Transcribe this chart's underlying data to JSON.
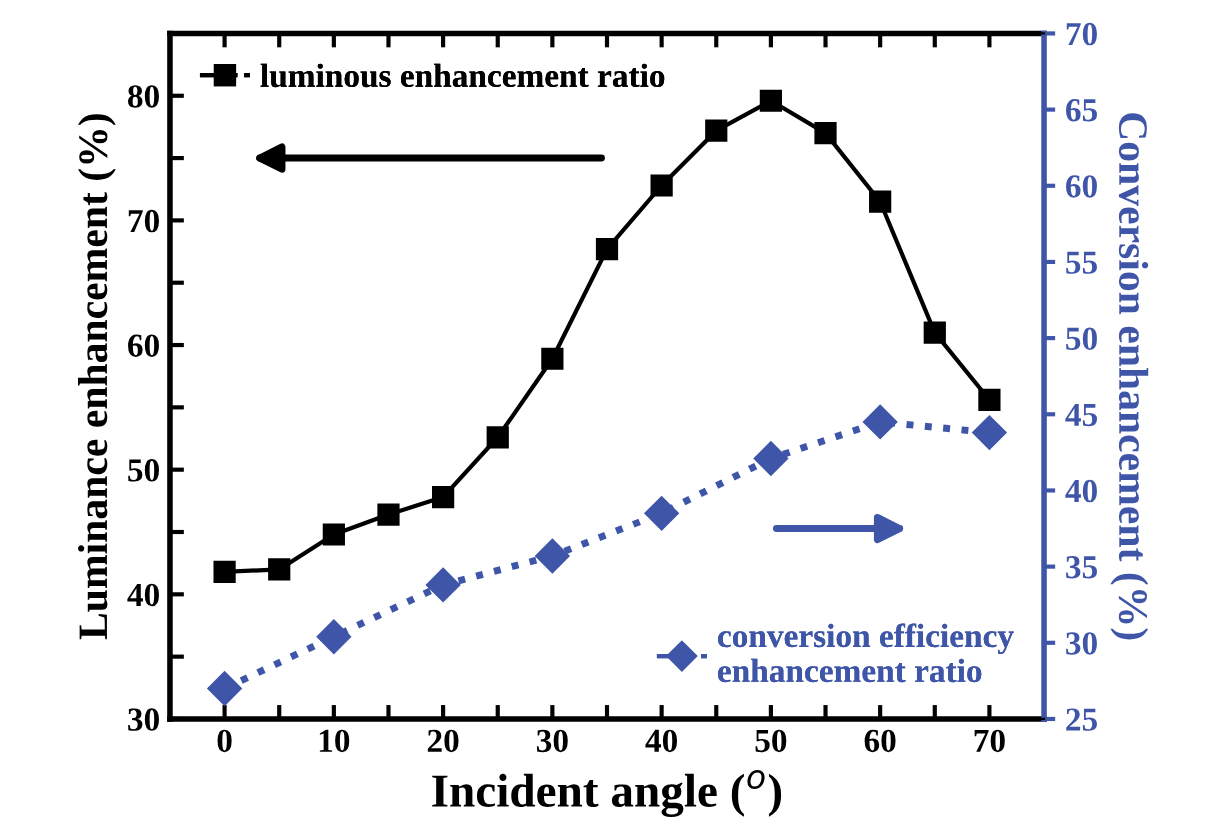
{
  "chart_data": {
    "type": "line",
    "xlabel": "Incident angle ($^{o}$)",
    "ylabel": "Luminance enhancement (%)",
    "y2label": "Conversion enhancement (%)",
    "xlim": [
      -5,
      75
    ],
    "xticks": [
      0,
      {
        "value": 5,
        "label": null
      },
      10,
      {
        "value": 15,
        "label": null
      },
      20,
      {
        "value": 25,
        "label": null
      },
      30,
      {
        "value": 35,
        "label": null
      },
      40,
      {
        "value": 45,
        "label": null
      },
      50,
      {
        "value": 55,
        "label": null
      },
      60,
      {
        "value": 65,
        "label": null
      },
      70
    ],
    "ylim": [
      30,
      85
    ],
    "yticks": [
      30,
      {
        "value": 35,
        "label": null
      },
      40,
      {
        "value": 45,
        "label": null
      },
      50,
      {
        "value": 55,
        "label": null
      },
      60,
      {
        "value": 65,
        "label": null
      },
      70,
      {
        "value": 75,
        "label": null
      },
      80
    ],
    "y2lim": [
      25,
      70
    ],
    "y2ticks": [
      25,
      30,
      35,
      40,
      45,
      50,
      55,
      60,
      65,
      70
    ],
    "legend": "top left",
    "grid": false,
    "series": [
      {
        "name": "luminous enhancement ratio",
        "color": "#000000",
        "marker": "square",
        "line_style": "solid",
        "x": [
          0,
          5,
          10,
          15,
          20,
          25,
          30,
          35,
          40,
          45,
          50,
          55,
          60,
          65,
          70
        ],
        "values": [
          41.8,
          42,
          44.8,
          46.4,
          47.8,
          52.6,
          58.9,
          67.7,
          72.8,
          77.2,
          79.6,
          77,
          71.5,
          61,
          55.6
        ]
      },
      {
        "name": "conversion efficiency\nenhancement ratio",
        "color": "#3f56a8",
        "marker": "diamond",
        "line_style": "dotted",
        "axis": "y2",
        "x": [
          0,
          10,
          20,
          30,
          40,
          50,
          60,
          70
        ],
        "values": [
          27,
          30.4,
          33.8,
          35.7,
          38.5,
          42.1,
          44.5,
          43.8
        ]
      }
    ]
  }
}
